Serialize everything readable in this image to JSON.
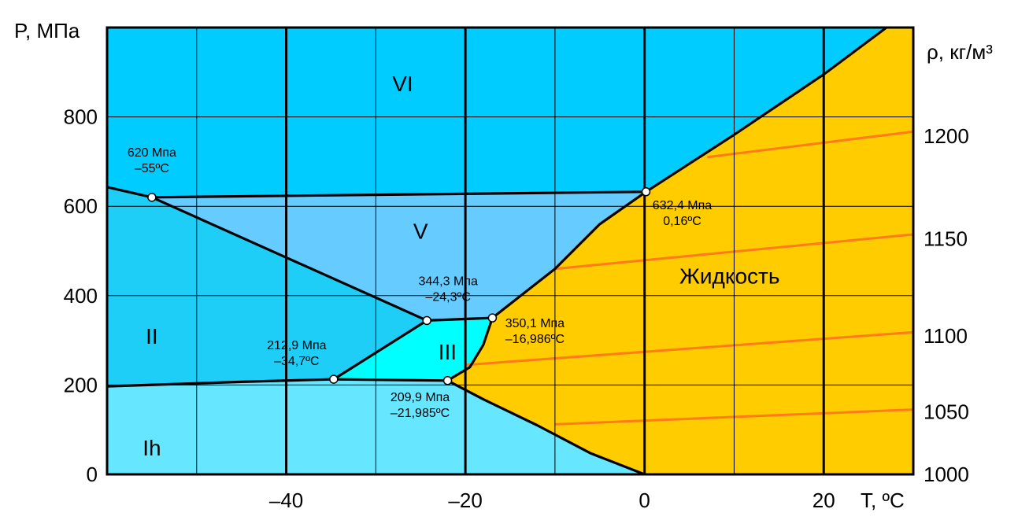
{
  "chart_data": {
    "type": "phase-diagram",
    "xlabel": "T, ºС",
    "ylabel": "P, МПа",
    "y2label": "ρ, кг/м³",
    "xlim": [
      -60,
      30
    ],
    "ylim": [
      0,
      1000
    ],
    "xticks": [
      {
        "value": -40,
        "label": "–40"
      },
      {
        "value": -20,
        "label": "–20"
      },
      {
        "value": 0,
        "label": "0"
      },
      {
        "value": 20,
        "label": "20"
      }
    ],
    "yticks": [
      {
        "value": 0,
        "label": "0"
      },
      {
        "value": 200,
        "label": "200"
      },
      {
        "value": 400,
        "label": "400"
      },
      {
        "value": 600,
        "label": "600"
      },
      {
        "value": 800,
        "label": "800"
      }
    ],
    "y2ticks": [
      {
        "value": 1000,
        "label": "1000"
      },
      {
        "value": 1050,
        "label": "1050"
      },
      {
        "value": 1100,
        "label": "1100"
      },
      {
        "value": 1150,
        "label": "1150"
      },
      {
        "value": 1200,
        "label": "1200"
      }
    ],
    "y2_positions_P": [
      0,
      140,
      310,
      527,
      757
    ],
    "minor_grid_T": [
      -50,
      -30,
      -10,
      10
    ],
    "major_grid_T": [
      -40,
      -20,
      0,
      20
    ],
    "grid_P": [
      200,
      400,
      600,
      800
    ],
    "colors": {
      "ice_VI": "#00ccff",
      "ice_V": "#66ccff",
      "ice_II": "#1ecef6",
      "ice_III": "#00ffff",
      "ice_Ih": "#66e6ff",
      "liquid": "#ffcc00",
      "density_lines": "#ff7a1a"
    },
    "regions": [
      {
        "name": "VI",
        "T": -27,
        "P": 870
      },
      {
        "name": "V",
        "T": -25,
        "P": 540
      },
      {
        "name": "II",
        "T": -55,
        "P": 305
      },
      {
        "name": "III",
        "T": -22,
        "P": 270
      },
      {
        "name": "Ih",
        "T": -55,
        "P": 55
      },
      {
        "name": "Жидкость",
        "T": 9.5,
        "P": 440
      }
    ],
    "triple_points": [
      {
        "T": -55,
        "P": 620,
        "label_line1": "620 Мпа",
        "label_line2": "–55ºС"
      },
      {
        "T": 0.16,
        "P": 632.4,
        "label_line1": "632,4 Мпа",
        "label_line2": "0,16ºС"
      },
      {
        "T": -24.3,
        "P": 344.3,
        "label_line1": "344,3 Мпа",
        "label_line2": "–24,3ºС"
      },
      {
        "T": -16.986,
        "P": 350.1,
        "label_line1": "350,1 Мпа",
        "label_line2": "–16,986ºС"
      },
      {
        "T": -34.7,
        "P": 212.9,
        "label_line1": "212,9 Мпа",
        "label_line2": "–34,7ºС"
      },
      {
        "T": -21.985,
        "P": 209.9,
        "label_line1": "209,9 Мпа",
        "label_line2": "–21,985ºС"
      }
    ],
    "boundaries": [
      {
        "name": "ih-liquid",
        "points": [
          [
            0,
            0
          ],
          [
            -6,
            47
          ],
          [
            -12,
            110
          ],
          [
            -18,
            168
          ],
          [
            -21.985,
            209.9
          ]
        ]
      },
      {
        "name": "iii-liquid",
        "points": [
          [
            -21.985,
            209.9
          ],
          [
            -19.5,
            240
          ],
          [
            -18,
            290
          ],
          [
            -16.986,
            350.1
          ]
        ]
      },
      {
        "name": "v-liquid",
        "points": [
          [
            -16.986,
            350.1
          ],
          [
            -10,
            460
          ],
          [
            -5,
            560
          ],
          [
            0.16,
            632.4
          ]
        ]
      },
      {
        "name": "vi-liquid",
        "points": [
          [
            0.16,
            632.4
          ],
          [
            10,
            760
          ],
          [
            20,
            895
          ],
          [
            27,
            1000
          ]
        ]
      },
      {
        "name": "ih-ii",
        "points": [
          [
            -60,
            197
          ],
          [
            -45,
            207
          ],
          [
            -34.7,
            212.9
          ]
        ]
      },
      {
        "name": "ih-iii",
        "points": [
          [
            -34.7,
            212.9
          ],
          [
            -21.985,
            209.9
          ]
        ]
      },
      {
        "name": "ii-iii",
        "points": [
          [
            -34.7,
            212.9
          ],
          [
            -24.3,
            344.3
          ]
        ]
      },
      {
        "name": "iii-v",
        "points": [
          [
            -24.3,
            344.3
          ],
          [
            -16.986,
            350.1
          ]
        ]
      },
      {
        "name": "ii-v",
        "points": [
          [
            -24.3,
            344.3
          ],
          [
            -55,
            620
          ]
        ]
      },
      {
        "name": "ii-vi",
        "points": [
          [
            -55,
            620
          ],
          [
            -60,
            643
          ]
        ]
      },
      {
        "name": "v-vi",
        "points": [
          [
            -55,
            620
          ],
          [
            0.16,
            632.4
          ]
        ]
      }
    ],
    "density_isolines": [
      {
        "points": [
          [
            -10,
            112
          ],
          [
            30,
            145
          ]
        ]
      },
      {
        "points": [
          [
            -20,
            245
          ],
          [
            30,
            318
          ]
        ]
      },
      {
        "points": [
          [
            -10,
            460
          ],
          [
            30,
            537
          ]
        ]
      },
      {
        "points": [
          [
            7,
            710
          ],
          [
            30,
            767
          ]
        ]
      }
    ]
  }
}
